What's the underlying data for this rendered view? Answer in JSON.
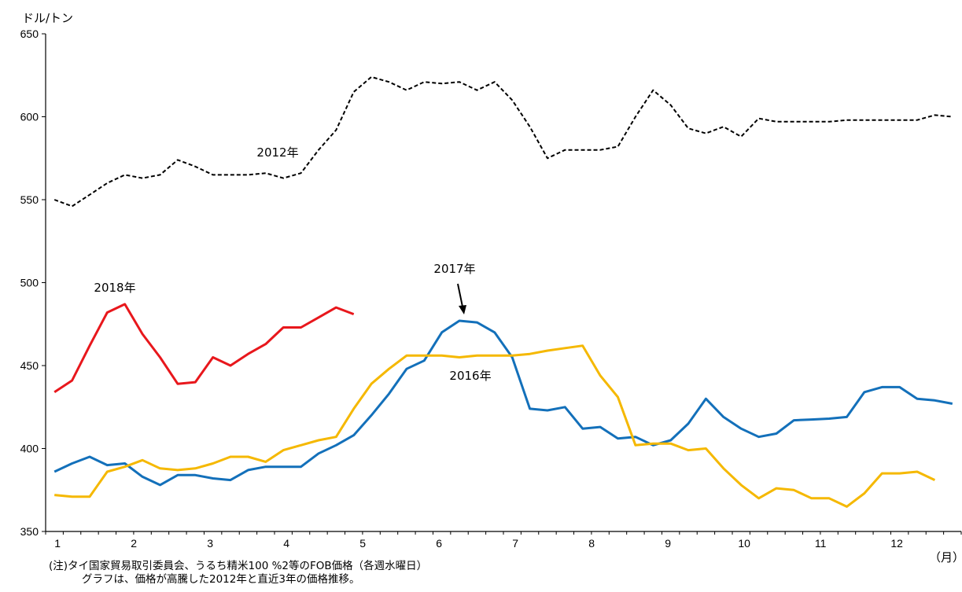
{
  "chart_data": {
    "type": "line",
    "title": "",
    "ylabel": "ドル/トン",
    "xlabel": "（月）",
    "ylim": [
      350,
      650
    ],
    "yticks": [
      350,
      400,
      450,
      500,
      550,
      600,
      650
    ],
    "xticks": [
      "1",
      "2",
      "3",
      "4",
      "5",
      "6",
      "7",
      "8",
      "9",
      "10",
      "11",
      "12"
    ],
    "grid": false,
    "legend": "inline labels",
    "series": [
      {
        "name": "2012年",
        "color": "#000000",
        "dash": "dashed",
        "values": [
          550,
          546,
          553,
          560,
          565,
          563,
          565,
          574,
          570,
          565,
          565,
          565,
          566,
          563,
          566,
          580,
          592,
          615,
          624,
          621,
          616,
          621,
          620,
          621,
          616,
          621,
          610,
          594,
          575,
          580,
          580,
          580,
          582,
          600,
          616,
          607,
          593,
          590,
          594,
          588,
          599,
          597,
          597,
          597,
          597,
          598,
          598,
          598,
          598,
          598,
          601,
          600
        ]
      },
      {
        "name": "2018年",
        "color": "#e8171c",
        "dash": "solid",
        "values": [
          434,
          441,
          462,
          482,
          487,
          469,
          455,
          439,
          440,
          455,
          450,
          457,
          463,
          473,
          473,
          479,
          485,
          481
        ]
      },
      {
        "name": "2017年",
        "color": "#1370ba",
        "dash": "solid",
        "values": [
          386,
          391,
          395,
          390,
          391,
          383,
          378,
          384,
          384,
          382,
          381,
          387,
          389,
          389,
          389,
          397,
          402,
          408,
          420,
          433,
          448,
          453,
          470,
          477,
          476,
          470,
          455,
          424,
          423,
          425,
          412,
          413,
          406,
          407,
          402,
          405,
          415,
          430,
          419,
          412,
          407,
          409,
          417,
          417.5,
          418,
          419,
          434,
          437,
          437,
          430,
          429,
          427
        ]
      },
      {
        "name": "2016年",
        "color": "#f5b800",
        "dash": "solid",
        "values": [
          372,
          371,
          371,
          386,
          389,
          393,
          388,
          387,
          388,
          391,
          395,
          395,
          392,
          399,
          402,
          405,
          407,
          424,
          439,
          448,
          456,
          456,
          456,
          455,
          456,
          456,
          456,
          457,
          459,
          460.5,
          462,
          444,
          431,
          402,
          403,
          403,
          399,
          400,
          388,
          378,
          370,
          376,
          375,
          370,
          370,
          365,
          373,
          385,
          385,
          386,
          381
        ]
      }
    ],
    "annotations": [
      {
        "text": "2012年",
        "series": "2012年"
      },
      {
        "text": "2018年",
        "series": "2018年"
      },
      {
        "text": "2017年",
        "series": "2017年",
        "arrow": true
      },
      {
        "text": "2016年",
        "series": "2016年"
      }
    ]
  },
  "notes": {
    "line1": "(注)タイ国家貿易取引委員会、うるち精米100 %2等のFOB価格（各週水曜日）",
    "line2": "グラフは、価格が高騰した2012年と直近3年の価格推移。"
  }
}
